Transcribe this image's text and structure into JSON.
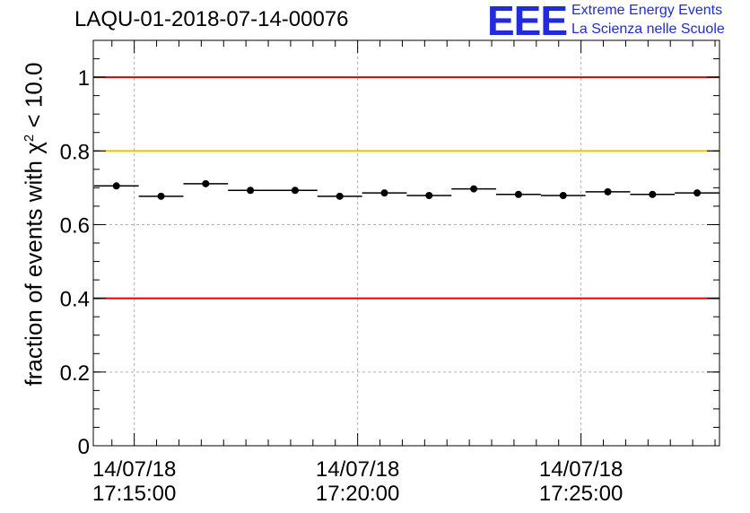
{
  "header": {
    "title": "LAQU-01-2018-07-14-00076",
    "logo_text": "EEE",
    "logo_line1": "Extreme Energy Events",
    "logo_line2": "La Scienza nelle Scuole"
  },
  "colors": {
    "red_line": "#e00000",
    "orange_line": "#ffc000",
    "logo_blue": "#1f2bdc",
    "points": "#000000"
  },
  "chart_data": {
    "type": "scatter",
    "title": "LAQU-01-2018-07-14-00076",
    "ylabel_prefix": "fraction of events with ",
    "ylabel_symbol": "χ",
    "ylabel_exponent": "2",
    "ylabel_suffix": " < 10.0",
    "xlabel": "",
    "ylim": [
      0,
      1.1
    ],
    "xlim_minutes": [
      14.0833,
      28.1
    ],
    "y_ticks": [
      {
        "value": 0,
        "label": "0"
      },
      {
        "value": 0.2,
        "label": "0.2"
      },
      {
        "value": 0.4,
        "label": "0.4"
      },
      {
        "value": 0.6,
        "label": "0.6"
      },
      {
        "value": 0.8,
        "label": "0.8"
      },
      {
        "value": 1.0,
        "label": "1"
      }
    ],
    "x_ticks": [
      {
        "minute": 15,
        "date": "14/07/18",
        "time": "17:15:00"
      },
      {
        "minute": 20,
        "date": "14/07/18",
        "time": "17:20:00"
      },
      {
        "minute": 25,
        "date": "14/07/18",
        "time": "17:25:00"
      }
    ],
    "reference_lines": [
      {
        "value": 1.0,
        "color": "red"
      },
      {
        "value": 0.8,
        "color": "orange"
      },
      {
        "value": 0.4,
        "color": "red"
      }
    ],
    "bin_width_minutes": 1.0,
    "points": [
      {
        "minute": 14.6,
        "y": 0.705
      },
      {
        "minute": 15.6,
        "y": 0.677
      },
      {
        "minute": 16.6,
        "y": 0.711
      },
      {
        "minute": 17.6,
        "y": 0.693
      },
      {
        "minute": 18.6,
        "y": 0.693
      },
      {
        "minute": 19.6,
        "y": 0.677
      },
      {
        "minute": 20.6,
        "y": 0.686
      },
      {
        "minute": 21.6,
        "y": 0.679
      },
      {
        "minute": 22.6,
        "y": 0.697
      },
      {
        "minute": 23.6,
        "y": 0.682
      },
      {
        "minute": 24.6,
        "y": 0.679
      },
      {
        "minute": 25.6,
        "y": 0.689
      },
      {
        "minute": 26.6,
        "y": 0.682
      },
      {
        "minute": 27.6,
        "y": 0.686
      }
    ]
  }
}
